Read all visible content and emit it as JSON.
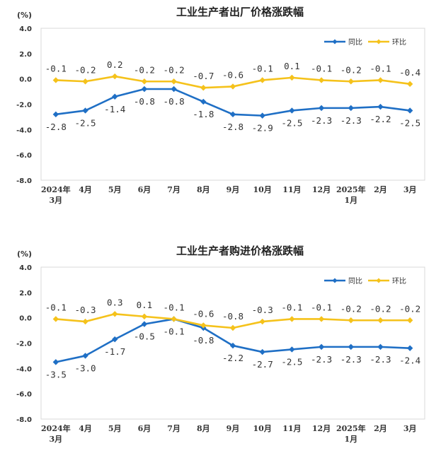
{
  "chart_data": [
    {
      "type": "line",
      "title": "工业生产者出厂价格涨跌幅",
      "unit": "(%)",
      "categories": [
        [
          "2024年",
          "3月"
        ],
        [
          "4月"
        ],
        [
          "5月"
        ],
        [
          "6月"
        ],
        [
          "7月"
        ],
        [
          "8月"
        ],
        [
          "9月"
        ],
        [
          "10月"
        ],
        [
          "11月"
        ],
        [
          "12月"
        ],
        [
          "2025年",
          "1月"
        ],
        [
          "2月"
        ],
        [
          "3月"
        ]
      ],
      "yticks": [
        "4.0",
        "2.0",
        "0.0",
        "-2.0",
        "-4.0",
        "-6.0",
        "-8.0"
      ],
      "ylim": [
        -8,
        4
      ],
      "series": [
        {
          "name": "同比",
          "color": "#1f6fc5",
          "label_pos": "below",
          "values": [
            -2.8,
            -2.5,
            -1.4,
            -0.8,
            -0.8,
            -1.8,
            -2.8,
            -2.9,
            -2.5,
            -2.3,
            -2.3,
            -2.2,
            -2.5
          ],
          "labels": [
            "-2.8",
            "-2.5",
            "-1.4",
            "-0.8",
            "-0.8",
            "-1.8",
            "-2.8",
            "-2.9",
            "-2.5",
            "-2.3",
            "-2.3",
            "-2.2",
            "-2.5"
          ]
        },
        {
          "name": "环比",
          "color": "#f5c21b",
          "label_pos": "above",
          "values": [
            -0.1,
            -0.2,
            0.2,
            -0.2,
            -0.2,
            -0.7,
            -0.6,
            -0.1,
            0.1,
            -0.1,
            -0.2,
            -0.1,
            -0.4
          ],
          "labels": [
            "-0.1",
            "-0.2",
            "0.2",
            "-0.2",
            "-0.2",
            "-0.7",
            "-0.6",
            "-0.1",
            "0.1",
            "-0.1",
            "-0.2",
            "-0.1",
            "-0.4"
          ]
        }
      ]
    },
    {
      "type": "line",
      "title": "工业生产者购进价格涨跌幅",
      "unit": "(%)",
      "categories": [
        [
          "2024年",
          "3月"
        ],
        [
          "4月"
        ],
        [
          "5月"
        ],
        [
          "6月"
        ],
        [
          "7月"
        ],
        [
          "8月"
        ],
        [
          "9月"
        ],
        [
          "10月"
        ],
        [
          "11月"
        ],
        [
          "12月"
        ],
        [
          "2025年",
          "1月"
        ],
        [
          "2月"
        ],
        [
          "3月"
        ]
      ],
      "yticks": [
        "4.0",
        "2.0",
        "0.0",
        "-2.0",
        "-4.0",
        "-6.0",
        "-8.0"
      ],
      "ylim": [
        -8,
        4
      ],
      "series": [
        {
          "name": "同比",
          "color": "#1f6fc5",
          "label_pos": "below",
          "values": [
            -3.5,
            -3.0,
            -1.7,
            -0.5,
            -0.1,
            -0.8,
            -2.2,
            -2.7,
            -2.5,
            -2.3,
            -2.3,
            -2.3,
            -2.4
          ],
          "labels": [
            "-3.5",
            "-3.0",
            "-1.7",
            "-0.5",
            "-0.1",
            "-0.8",
            "-2.2",
            "-2.7",
            "-2.5",
            "-2.3",
            "-2.3",
            "-2.3",
            "-2.4"
          ]
        },
        {
          "name": "环比",
          "color": "#f5c21b",
          "label_pos": "above",
          "values": [
            -0.1,
            -0.3,
            0.3,
            0.1,
            -0.1,
            -0.6,
            -0.8,
            -0.3,
            -0.1,
            -0.1,
            -0.2,
            -0.2,
            -0.2
          ],
          "labels": [
            "-0.1",
            "-0.3",
            "0.3",
            "0.1",
            "-0.1",
            "-0.6",
            "-0.8",
            "-0.3",
            "-0.1",
            "-0.1",
            "-0.2",
            "-0.2",
            "-0.2"
          ]
        }
      ]
    }
  ]
}
